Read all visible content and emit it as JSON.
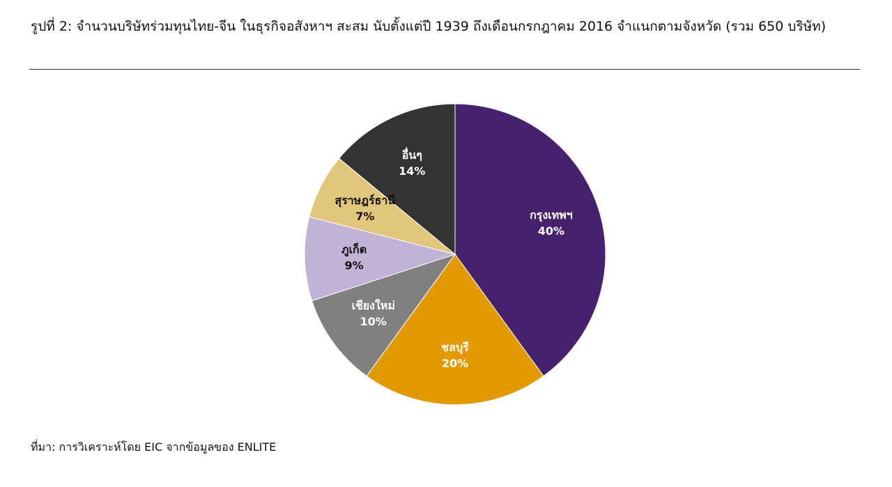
{
  "title": "รูปที่ 2: จำนวนบริษัทร่วมทุนไทย-จีน ในธุรกิจอสังหาฯ สะสม นับตั้งแต่ปี 1939 ถึงเดือนกรกฎาคม 2016 จำแนกตามจังหวัด (รวม 650 บริษัท)",
  "source": "ที่มา: การวิเคราะห์โดย EIC จากข้อมูลของ ENLITE",
  "chart_data": {
    "type": "pie",
    "title": "",
    "start_angle_deg": 0,
    "direction": "clockwise",
    "slices": [
      {
        "name": "กรุงเทพฯ",
        "value": 40,
        "label": "40%",
        "color": "#46226e",
        "text_color": "#ffffff"
      },
      {
        "name": "ชลบุรี",
        "value": 20,
        "label": "20%",
        "color": "#e29a00",
        "text_color": "#ffffff"
      },
      {
        "name": "เชียงใหม่",
        "value": 10,
        "label": "10%",
        "color": "#808080",
        "text_color": "#ffffff"
      },
      {
        "name": "ภูเก็ต",
        "value": 9,
        "label": "9%",
        "color": "#c1b3d6",
        "text_color": "#111111"
      },
      {
        "name": "สุราษฎร์ธานี",
        "value": 7,
        "label": "7%",
        "color": "#e2c67c",
        "text_color": "#111111"
      },
      {
        "name": "อื่นๆ",
        "value": 14,
        "label": "14%",
        "color": "#333333",
        "text_color": "#ffffff"
      }
    ]
  }
}
